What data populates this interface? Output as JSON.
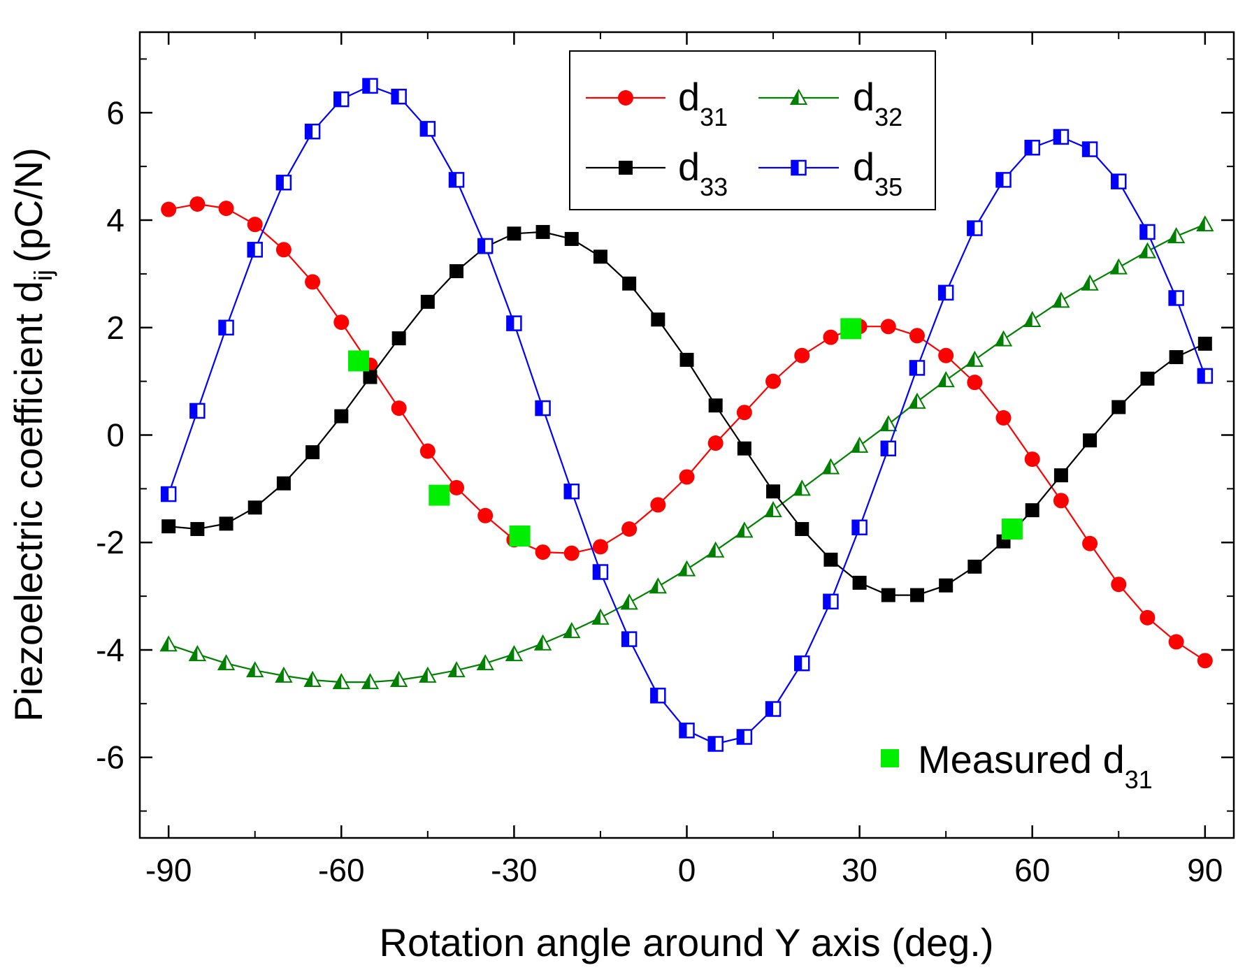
{
  "chart_data": {
    "type": "line",
    "title": "",
    "xlabel": "Rotation angle around Y axis (deg.)",
    "ylabel": {
      "main": "Piezoelectric coefficient d",
      "sub": "ij",
      "unit": "(pC/N)"
    },
    "xlim": [
      -95,
      95
    ],
    "ylim": [
      -7.5,
      7.5
    ],
    "xticks": [
      -90,
      -60,
      -30,
      0,
      30,
      60,
      90
    ],
    "yticks": [
      -6,
      -4,
      -2,
      0,
      2,
      4,
      6
    ],
    "x": [
      -90,
      -85,
      -80,
      -75,
      -70,
      -65,
      -60,
      -55,
      -50,
      -45,
      -40,
      -35,
      -30,
      -25,
      -20,
      -15,
      -10,
      -5,
      0,
      5,
      10,
      15,
      20,
      25,
      30,
      35,
      40,
      45,
      50,
      55,
      60,
      65,
      70,
      75,
      80,
      85,
      90
    ],
    "series": [
      {
        "name": "d31",
        "label": "d",
        "sub": "31",
        "color": "#ff0000",
        "marker": "circle",
        "values": [
          4.2,
          4.3,
          4.22,
          3.92,
          3.45,
          2.85,
          2.1,
          1.3,
          0.5,
          -0.3,
          -0.98,
          -1.5,
          -1.95,
          -2.18,
          -2.2,
          -2.08,
          -1.75,
          -1.3,
          -0.78,
          -0.15,
          0.42,
          1.0,
          1.48,
          1.82,
          2.02,
          2.02,
          1.85,
          1.48,
          0.98,
          0.32,
          -0.45,
          -1.22,
          -2.02,
          -2.78,
          -3.4,
          -3.85,
          -4.2
        ]
      },
      {
        "name": "d32",
        "label": "d",
        "sub": "32",
        "color": "#008000",
        "marker": "triangle-open",
        "values": [
          -3.9,
          -4.08,
          -4.25,
          -4.38,
          -4.48,
          -4.56,
          -4.6,
          -4.6,
          -4.56,
          -4.48,
          -4.38,
          -4.25,
          -4.08,
          -3.88,
          -3.65,
          -3.4,
          -3.12,
          -2.82,
          -2.5,
          -2.15,
          -1.78,
          -1.4,
          -1.0,
          -0.6,
          -0.2,
          0.2,
          0.62,
          1.02,
          1.4,
          1.78,
          2.14,
          2.5,
          2.82,
          3.12,
          3.42,
          3.7,
          3.92
        ]
      },
      {
        "name": "d33",
        "label": "d",
        "sub": "33",
        "color": "#000000",
        "marker": "square",
        "values": [
          -1.7,
          -1.75,
          -1.65,
          -1.35,
          -0.9,
          -0.32,
          0.35,
          1.08,
          1.8,
          2.48,
          3.05,
          3.5,
          3.75,
          3.78,
          3.65,
          3.32,
          2.82,
          2.15,
          1.4,
          0.55,
          -0.25,
          -1.05,
          -1.75,
          -2.32,
          -2.75,
          -2.98,
          -2.98,
          -2.8,
          -2.45,
          -1.98,
          -1.4,
          -0.75,
          -0.1,
          0.52,
          1.05,
          1.45,
          1.7
        ]
      },
      {
        "name": "d35",
        "label": "d",
        "sub": "35",
        "color": "#0000ff",
        "marker": "half-square",
        "values": [
          -1.1,
          0.45,
          2.0,
          3.45,
          4.7,
          5.65,
          6.25,
          6.5,
          6.3,
          5.7,
          4.75,
          3.52,
          2.08,
          0.5,
          -1.05,
          -2.55,
          -3.8,
          -4.85,
          -5.5,
          -5.75,
          -5.62,
          -5.1,
          -4.25,
          -3.1,
          -1.72,
          -0.25,
          1.25,
          2.65,
          3.85,
          4.75,
          5.35,
          5.55,
          5.32,
          4.72,
          3.78,
          2.55,
          1.1
        ]
      }
    ],
    "measured": {
      "name": "Measured d31",
      "label": "Measured d",
      "sub": "31",
      "color": "#00ee00",
      "points": [
        [
          -57,
          1.38
        ],
        [
          -43,
          -1.12
        ],
        [
          -29,
          -1.88
        ],
        [
          28.5,
          1.98
        ],
        [
          56.5,
          -1.75
        ]
      ]
    },
    "legend": {
      "position": "top-center"
    },
    "measured_legend": {
      "position": "bottom-right"
    }
  }
}
